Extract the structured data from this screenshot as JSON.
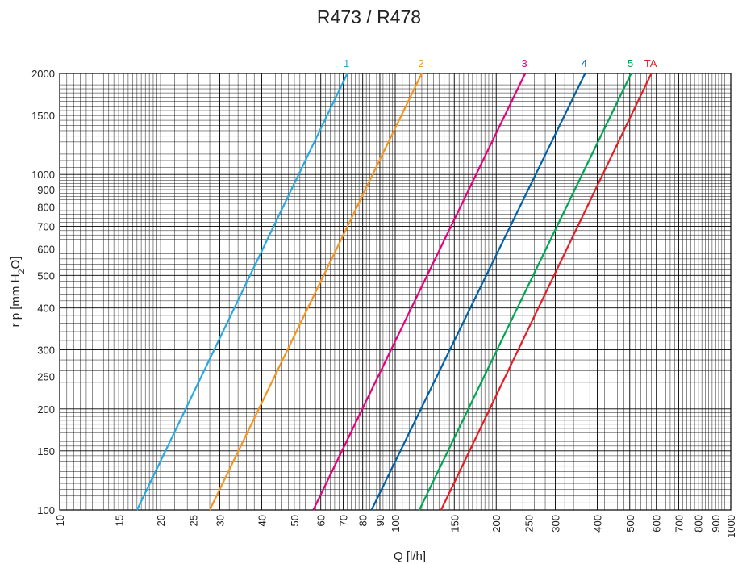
{
  "chart_data": {
    "type": "line",
    "title": "R473 / R478",
    "xlabel": "Q [l/h]",
    "ylabel_parts": [
      "r p [mm H",
      "2",
      "O]"
    ],
    "x_scale": "log",
    "y_scale": "log",
    "xlim": [
      10,
      1000
    ],
    "ylim": [
      100,
      2000
    ],
    "x_ticks": [
      10,
      15,
      20,
      25,
      30,
      40,
      50,
      60,
      70,
      80,
      90,
      100,
      150,
      200,
      250,
      300,
      400,
      500,
      600,
      700,
      800,
      900,
      1000
    ],
    "y_ticks": [
      100,
      150,
      200,
      250,
      300,
      400,
      500,
      600,
      700,
      800,
      900,
      1000,
      1500,
      2000
    ],
    "grid": true,
    "series": [
      {
        "name": "1",
        "color": "#29a9e1",
        "x": [
          17,
          72
        ],
        "y": [
          100,
          2000
        ]
      },
      {
        "name": "2",
        "color": "#f7941d",
        "x": [
          28,
          120
        ],
        "y": [
          100,
          2000
        ]
      },
      {
        "name": "3",
        "color": "#e6007e",
        "x": [
          57,
          244
        ],
        "y": [
          100,
          2000
        ]
      },
      {
        "name": "4",
        "color": "#0060a8",
        "x": [
          85,
          368
        ],
        "y": [
          100,
          2000
        ]
      },
      {
        "name": "5",
        "color": "#00a651",
        "x": [
          118,
          505
        ],
        "y": [
          100,
          2000
        ]
      },
      {
        "name": "TA",
        "color": "#e31e24",
        "x": [
          137,
          580
        ],
        "y": [
          100,
          2000
        ]
      }
    ]
  }
}
